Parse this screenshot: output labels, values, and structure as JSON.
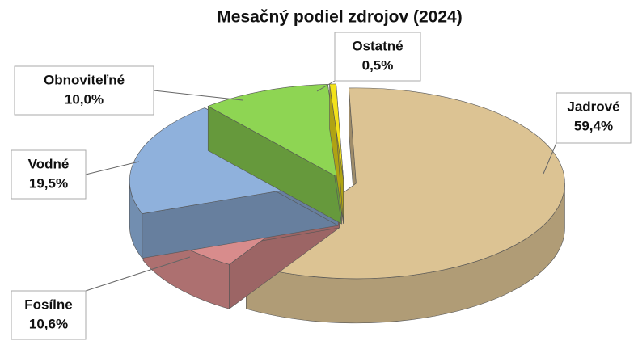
{
  "chart_data": {
    "type": "pie",
    "title": "Mesačný podiel zdrojov (2024)",
    "categories": [
      "Jadrové",
      "Fosílne",
      "Vodné",
      "Obnoviteľné",
      "Ostatné"
    ],
    "values": [
      59.4,
      10.6,
      19.5,
      10.0,
      0.5
    ],
    "value_labels": [
      "59,4%",
      "10,6%",
      "19,5%",
      "10,0%",
      "0,5%"
    ],
    "colors": [
      "#dcc393",
      "#d88c8c",
      "#8fb1dc",
      "#8ed553",
      "#f3e21a"
    ]
  }
}
